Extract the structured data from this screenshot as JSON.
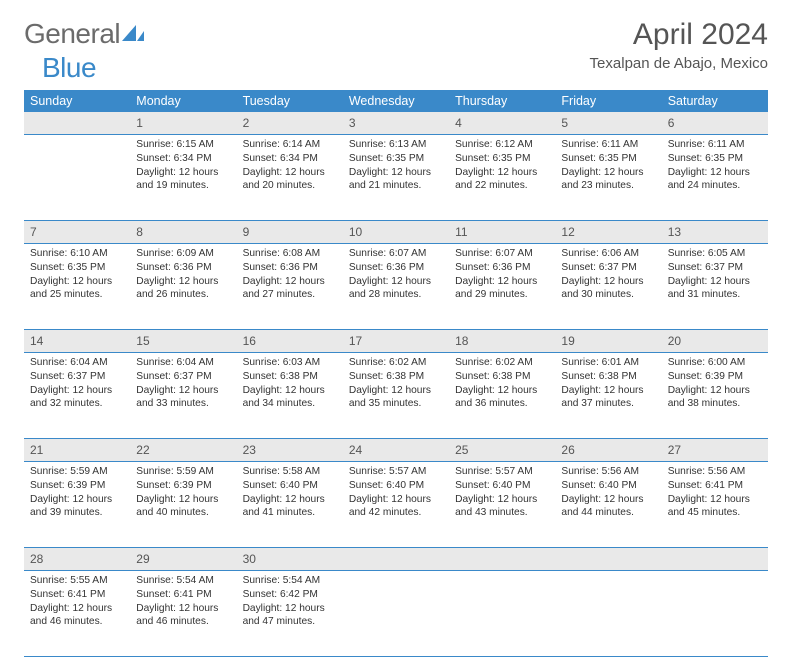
{
  "logo": {
    "text1": "General",
    "text2": "Blue"
  },
  "header": {
    "month_title": "April 2024",
    "location": "Texalpan de Abajo, Mexico"
  },
  "columns": [
    "Sunday",
    "Monday",
    "Tuesday",
    "Wednesday",
    "Thursday",
    "Friday",
    "Saturday"
  ],
  "colors": {
    "header_bg": "#3a89c9",
    "header_text": "#ffffff",
    "daynum_bg": "#e9e9e9",
    "rule": "#3a89c9",
    "text": "#333333",
    "title_text": "#555555"
  },
  "weeks": [
    [
      null,
      {
        "n": "1",
        "sr": "Sunrise: 6:15 AM",
        "ss": "Sunset: 6:34 PM",
        "d1": "Daylight: 12 hours",
        "d2": "and 19 minutes."
      },
      {
        "n": "2",
        "sr": "Sunrise: 6:14 AM",
        "ss": "Sunset: 6:34 PM",
        "d1": "Daylight: 12 hours",
        "d2": "and 20 minutes."
      },
      {
        "n": "3",
        "sr": "Sunrise: 6:13 AM",
        "ss": "Sunset: 6:35 PM",
        "d1": "Daylight: 12 hours",
        "d2": "and 21 minutes."
      },
      {
        "n": "4",
        "sr": "Sunrise: 6:12 AM",
        "ss": "Sunset: 6:35 PM",
        "d1": "Daylight: 12 hours",
        "d2": "and 22 minutes."
      },
      {
        "n": "5",
        "sr": "Sunrise: 6:11 AM",
        "ss": "Sunset: 6:35 PM",
        "d1": "Daylight: 12 hours",
        "d2": "and 23 minutes."
      },
      {
        "n": "6",
        "sr": "Sunrise: 6:11 AM",
        "ss": "Sunset: 6:35 PM",
        "d1": "Daylight: 12 hours",
        "d2": "and 24 minutes."
      }
    ],
    [
      {
        "n": "7",
        "sr": "Sunrise: 6:10 AM",
        "ss": "Sunset: 6:35 PM",
        "d1": "Daylight: 12 hours",
        "d2": "and 25 minutes."
      },
      {
        "n": "8",
        "sr": "Sunrise: 6:09 AM",
        "ss": "Sunset: 6:36 PM",
        "d1": "Daylight: 12 hours",
        "d2": "and 26 minutes."
      },
      {
        "n": "9",
        "sr": "Sunrise: 6:08 AM",
        "ss": "Sunset: 6:36 PM",
        "d1": "Daylight: 12 hours",
        "d2": "and 27 minutes."
      },
      {
        "n": "10",
        "sr": "Sunrise: 6:07 AM",
        "ss": "Sunset: 6:36 PM",
        "d1": "Daylight: 12 hours",
        "d2": "and 28 minutes."
      },
      {
        "n": "11",
        "sr": "Sunrise: 6:07 AM",
        "ss": "Sunset: 6:36 PM",
        "d1": "Daylight: 12 hours",
        "d2": "and 29 minutes."
      },
      {
        "n": "12",
        "sr": "Sunrise: 6:06 AM",
        "ss": "Sunset: 6:37 PM",
        "d1": "Daylight: 12 hours",
        "d2": "and 30 minutes."
      },
      {
        "n": "13",
        "sr": "Sunrise: 6:05 AM",
        "ss": "Sunset: 6:37 PM",
        "d1": "Daylight: 12 hours",
        "d2": "and 31 minutes."
      }
    ],
    [
      {
        "n": "14",
        "sr": "Sunrise: 6:04 AM",
        "ss": "Sunset: 6:37 PM",
        "d1": "Daylight: 12 hours",
        "d2": "and 32 minutes."
      },
      {
        "n": "15",
        "sr": "Sunrise: 6:04 AM",
        "ss": "Sunset: 6:37 PM",
        "d1": "Daylight: 12 hours",
        "d2": "and 33 minutes."
      },
      {
        "n": "16",
        "sr": "Sunrise: 6:03 AM",
        "ss": "Sunset: 6:38 PM",
        "d1": "Daylight: 12 hours",
        "d2": "and 34 minutes."
      },
      {
        "n": "17",
        "sr": "Sunrise: 6:02 AM",
        "ss": "Sunset: 6:38 PM",
        "d1": "Daylight: 12 hours",
        "d2": "and 35 minutes."
      },
      {
        "n": "18",
        "sr": "Sunrise: 6:02 AM",
        "ss": "Sunset: 6:38 PM",
        "d1": "Daylight: 12 hours",
        "d2": "and 36 minutes."
      },
      {
        "n": "19",
        "sr": "Sunrise: 6:01 AM",
        "ss": "Sunset: 6:38 PM",
        "d1": "Daylight: 12 hours",
        "d2": "and 37 minutes."
      },
      {
        "n": "20",
        "sr": "Sunrise: 6:00 AM",
        "ss": "Sunset: 6:39 PM",
        "d1": "Daylight: 12 hours",
        "d2": "and 38 minutes."
      }
    ],
    [
      {
        "n": "21",
        "sr": "Sunrise: 5:59 AM",
        "ss": "Sunset: 6:39 PM",
        "d1": "Daylight: 12 hours",
        "d2": "and 39 minutes."
      },
      {
        "n": "22",
        "sr": "Sunrise: 5:59 AM",
        "ss": "Sunset: 6:39 PM",
        "d1": "Daylight: 12 hours",
        "d2": "and 40 minutes."
      },
      {
        "n": "23",
        "sr": "Sunrise: 5:58 AM",
        "ss": "Sunset: 6:40 PM",
        "d1": "Daylight: 12 hours",
        "d2": "and 41 minutes."
      },
      {
        "n": "24",
        "sr": "Sunrise: 5:57 AM",
        "ss": "Sunset: 6:40 PM",
        "d1": "Daylight: 12 hours",
        "d2": "and 42 minutes."
      },
      {
        "n": "25",
        "sr": "Sunrise: 5:57 AM",
        "ss": "Sunset: 6:40 PM",
        "d1": "Daylight: 12 hours",
        "d2": "and 43 minutes."
      },
      {
        "n": "26",
        "sr": "Sunrise: 5:56 AM",
        "ss": "Sunset: 6:40 PM",
        "d1": "Daylight: 12 hours",
        "d2": "and 44 minutes."
      },
      {
        "n": "27",
        "sr": "Sunrise: 5:56 AM",
        "ss": "Sunset: 6:41 PM",
        "d1": "Daylight: 12 hours",
        "d2": "and 45 minutes."
      }
    ],
    [
      {
        "n": "28",
        "sr": "Sunrise: 5:55 AM",
        "ss": "Sunset: 6:41 PM",
        "d1": "Daylight: 12 hours",
        "d2": "and 46 minutes."
      },
      {
        "n": "29",
        "sr": "Sunrise: 5:54 AM",
        "ss": "Sunset: 6:41 PM",
        "d1": "Daylight: 12 hours",
        "d2": "and 46 minutes."
      },
      {
        "n": "30",
        "sr": "Sunrise: 5:54 AM",
        "ss": "Sunset: 6:42 PM",
        "d1": "Daylight: 12 hours",
        "d2": "and 47 minutes."
      },
      null,
      null,
      null,
      null
    ]
  ]
}
